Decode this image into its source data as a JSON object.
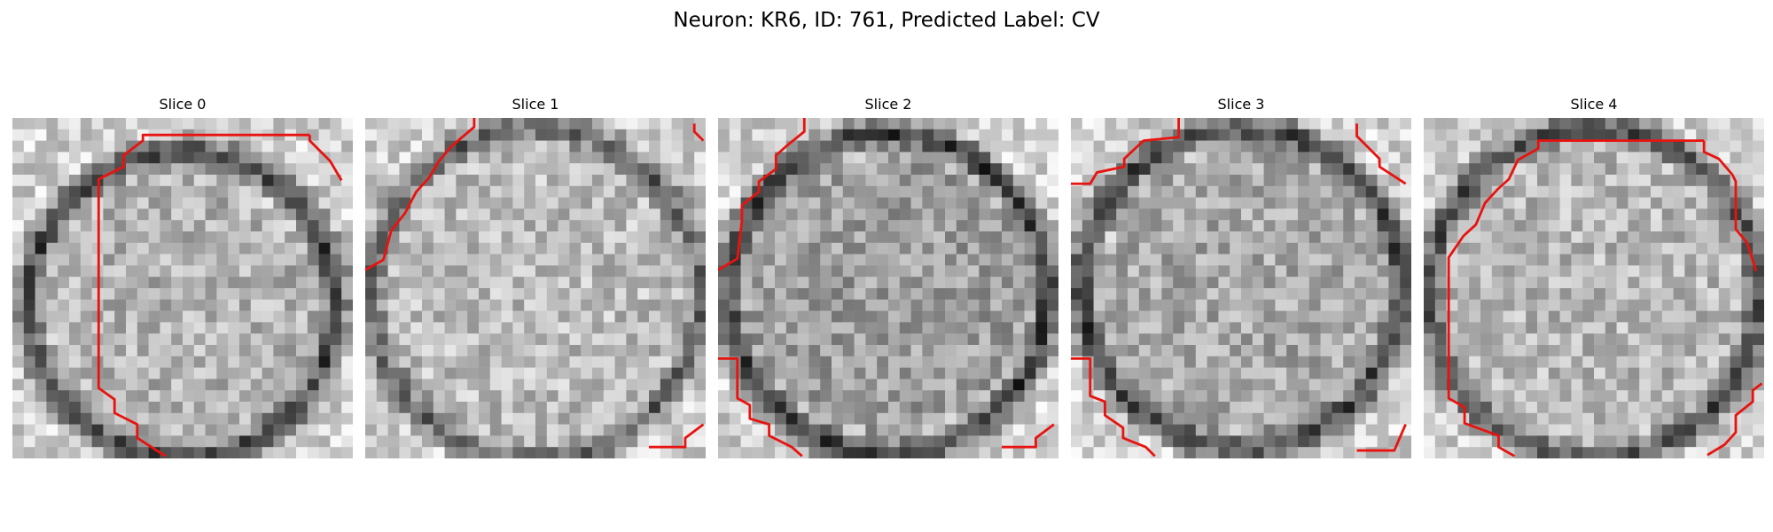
{
  "figure": {
    "title": "Neuron: KR6, ID: 761, Predicted Label: CV"
  },
  "panels": [
    {
      "title": "Slice 0"
    },
    {
      "title": "Slice 1"
    },
    {
      "title": "Slice 2"
    },
    {
      "title": "Slice 3"
    },
    {
      "title": "Slice 4"
    }
  ],
  "colors": {
    "contour": "#e8130f",
    "background": "#ffffff"
  }
}
